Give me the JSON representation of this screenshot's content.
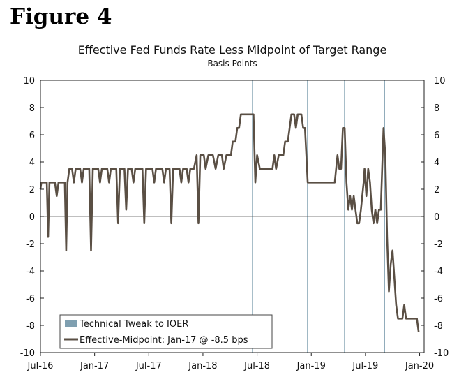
{
  "figure_label": "Figure 4",
  "colors": {
    "series": "#5a4f44",
    "tweak": "#7f9fb0",
    "zero": "#555555",
    "axis": "#222222"
  },
  "chart_data": {
    "type": "line",
    "title": "Effective Fed Funds Rate Less Midpoint of Target Range",
    "subtitle": "Basis Points",
    "ylim": [
      -10,
      10
    ],
    "yticks": [
      -10,
      -8,
      -6,
      -4,
      -2,
      0,
      2,
      4,
      6,
      8,
      10
    ],
    "xlim": [
      0,
      42.5
    ],
    "xticks": [
      {
        "label": "Jul-16",
        "x": 0
      },
      {
        "label": "Jan-17",
        "x": 6
      },
      {
        "label": "Jul-17",
        "x": 12
      },
      {
        "label": "Jan-18",
        "x": 18
      },
      {
        "label": "Jul-18",
        "x": 24
      },
      {
        "label": "Jan-19",
        "x": 30
      },
      {
        "label": "Jul-19",
        "x": 36
      },
      {
        "label": "Jan-20",
        "x": 42
      }
    ],
    "x_unit": "months since Jul-2016",
    "legend": {
      "position": "bottom-left",
      "entries": [
        {
          "label": "Technical Tweak to IOER",
          "kind": "box"
        },
        {
          "label": "Effective-Midpoint: Jan-17 @ -8.5 bps",
          "kind": "line"
        }
      ]
    },
    "vlines": [
      {
        "name": "tweak-jun-2018",
        "x": 23.5
      },
      {
        "name": "tweak-dec-2018",
        "x": 29.6
      },
      {
        "name": "tweak-apr-2019",
        "x": 33.7
      },
      {
        "name": "tweak-sep-2019",
        "x": 38.1
      }
    ],
    "series": [
      {
        "name": "Effective-Midpoint",
        "points": [
          [
            0,
            2
          ],
          [
            0.1,
            2.5
          ],
          [
            0.7,
            2.5
          ],
          [
            0.85,
            -1.5
          ],
          [
            1.0,
            2.5
          ],
          [
            1.6,
            2.5
          ],
          [
            1.8,
            1.5
          ],
          [
            2.0,
            2.5
          ],
          [
            2.7,
            2.5
          ],
          [
            2.85,
            -2.5
          ],
          [
            3.0,
            2.5
          ],
          [
            3.2,
            3.5
          ],
          [
            3.5,
            3.5
          ],
          [
            3.7,
            2.5
          ],
          [
            3.9,
            3.5
          ],
          [
            4.4,
            3.5
          ],
          [
            4.6,
            2.5
          ],
          [
            4.8,
            3.5
          ],
          [
            5.4,
            3.5
          ],
          [
            5.6,
            -2.5
          ],
          [
            5.8,
            3.5
          ],
          [
            6.4,
            3.5
          ],
          [
            6.6,
            2.5
          ],
          [
            6.8,
            3.5
          ],
          [
            7.4,
            3.5
          ],
          [
            7.6,
            2.5
          ],
          [
            7.8,
            3.5
          ],
          [
            8.4,
            3.5
          ],
          [
            8.6,
            -0.5
          ],
          [
            8.8,
            3.5
          ],
          [
            9.3,
            3.5
          ],
          [
            9.5,
            0.5
          ],
          [
            9.7,
            3.5
          ],
          [
            10.1,
            3.5
          ],
          [
            10.3,
            2.5
          ],
          [
            10.5,
            3.5
          ],
          [
            11.3,
            3.5
          ],
          [
            11.5,
            -0.5
          ],
          [
            11.7,
            3.5
          ],
          [
            12.4,
            3.5
          ],
          [
            12.6,
            2.5
          ],
          [
            12.8,
            3.5
          ],
          [
            13.5,
            3.5
          ],
          [
            13.7,
            2.5
          ],
          [
            13.9,
            3.5
          ],
          [
            14.3,
            3.5
          ],
          [
            14.5,
            -0.5
          ],
          [
            14.7,
            3.5
          ],
          [
            15.4,
            3.5
          ],
          [
            15.6,
            2.5
          ],
          [
            15.8,
            3.5
          ],
          [
            16.2,
            3.5
          ],
          [
            16.4,
            2.5
          ],
          [
            16.6,
            3.5
          ],
          [
            17.0,
            3.5
          ],
          [
            17.3,
            4.5
          ],
          [
            17.5,
            -0.5
          ],
          [
            17.7,
            4.5
          ],
          [
            18.1,
            4.5
          ],
          [
            18.3,
            3.5
          ],
          [
            18.6,
            4.5
          ],
          [
            19.1,
            4.5
          ],
          [
            19.4,
            3.5
          ],
          [
            19.7,
            4.5
          ],
          [
            20.1,
            4.5
          ],
          [
            20.3,
            3.5
          ],
          [
            20.6,
            4.5
          ],
          [
            21.1,
            4.5
          ],
          [
            21.3,
            5.5
          ],
          [
            21.6,
            5.5
          ],
          [
            21.8,
            6.5
          ],
          [
            22.0,
            6.5
          ],
          [
            22.2,
            7.5
          ],
          [
            23.6,
            7.5
          ],
          [
            23.8,
            2.5
          ],
          [
            24.0,
            4.5
          ],
          [
            24.3,
            3.5
          ],
          [
            25.7,
            3.5
          ],
          [
            25.9,
            4.5
          ],
          [
            26.1,
            3.5
          ],
          [
            26.4,
            4.5
          ],
          [
            26.9,
            4.5
          ],
          [
            27.1,
            5.5
          ],
          [
            27.4,
            5.5
          ],
          [
            27.6,
            6.5
          ],
          [
            27.8,
            7.5
          ],
          [
            28.1,
            7.5
          ],
          [
            28.3,
            6.5
          ],
          [
            28.5,
            7.5
          ],
          [
            28.9,
            7.5
          ],
          [
            29.1,
            6.5
          ],
          [
            29.3,
            6.5
          ],
          [
            29.6,
            2.5
          ],
          [
            32.6,
            2.5
          ],
          [
            32.9,
            4.5
          ],
          [
            33.1,
            3.5
          ],
          [
            33.3,
            3.5
          ],
          [
            33.5,
            6.5
          ],
          [
            33.7,
            6.5
          ],
          [
            33.9,
            2.5
          ],
          [
            34.1,
            0.5
          ],
          [
            34.3,
            1.5
          ],
          [
            34.5,
            0.5
          ],
          [
            34.7,
            1.5
          ],
          [
            34.9,
            0.5
          ],
          [
            35.1,
            -0.5
          ],
          [
            35.3,
            -0.5
          ],
          [
            35.5,
            0.5
          ],
          [
            35.8,
            2.5
          ],
          [
            35.9,
            3.5
          ],
          [
            36.1,
            1.5
          ],
          [
            36.3,
            3.5
          ],
          [
            36.5,
            2.5
          ],
          [
            36.7,
            0.5
          ],
          [
            36.9,
            -0.5
          ],
          [
            37.1,
            0.5
          ],
          [
            37.3,
            -0.5
          ],
          [
            37.5,
            0.5
          ],
          [
            37.7,
            0.5
          ],
          [
            38.0,
            6.5
          ],
          [
            38.2,
            4.5
          ],
          [
            38.4,
            -1.5
          ],
          [
            38.6,
            -5.5
          ],
          [
            38.8,
            -3.5
          ],
          [
            39.0,
            -2.5
          ],
          [
            39.2,
            -4.5
          ],
          [
            39.4,
            -6.5
          ],
          [
            39.6,
            -7.5
          ],
          [
            40.1,
            -7.5
          ],
          [
            40.3,
            -6.5
          ],
          [
            40.5,
            -7.5
          ],
          [
            41.5,
            -7.5
          ],
          [
            41.7,
            -7.5
          ],
          [
            41.9,
            -8.5
          ]
        ]
      }
    ]
  }
}
